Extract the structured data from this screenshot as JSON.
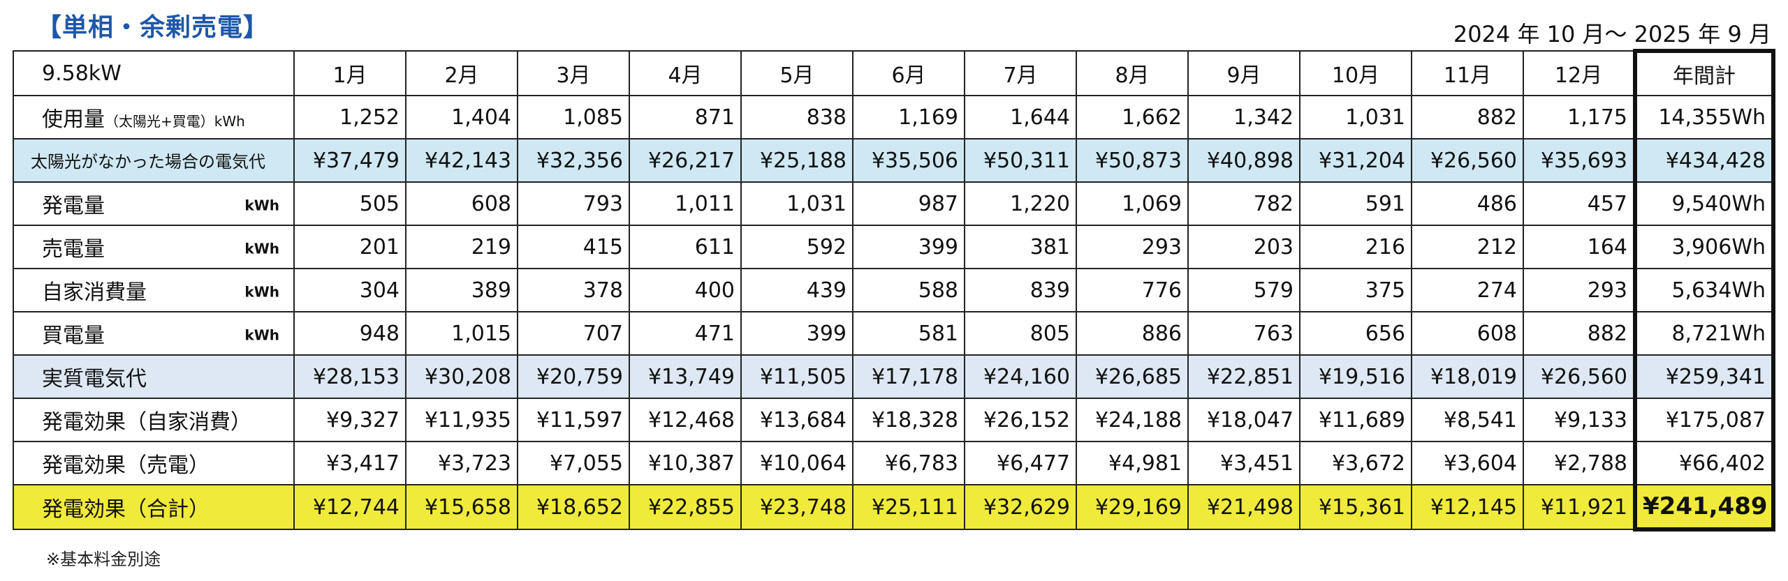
{
  "title": "【単相・余剰売電】",
  "period": "2024 年 10 月～ 2025 年 9 月",
  "header": {
    "capacity": "9.58kW",
    "months": [
      "1月",
      "2月",
      "3月",
      "4月",
      "5月",
      "6月",
      "7月",
      "8月",
      "9月",
      "10月",
      "11月",
      "12月"
    ],
    "total_label": "年間計"
  },
  "rows": [
    {
      "label": "使用量",
      "sub": "（太陽光+買電）kWh",
      "unit": "",
      "values": [
        "1,252",
        "1,404",
        "1,085",
        "871",
        "838",
        "1,169",
        "1,644",
        "1,662",
        "1,342",
        "1,031",
        "882",
        "1,175"
      ],
      "total": "14,355Wh"
    },
    {
      "label": "太陽光がなかった場合の電気代",
      "sub": "",
      "unit": "",
      "values": [
        "¥37,479",
        "¥42,143",
        "¥32,356",
        "¥26,217",
        "¥25,188",
        "¥35,506",
        "¥50,311",
        "¥50,873",
        "¥40,898",
        "¥31,204",
        "¥26,560",
        "¥35,693"
      ],
      "total": "¥434,428"
    },
    {
      "label": "発電量",
      "sub": "",
      "unit": "kWh",
      "values": [
        "505",
        "608",
        "793",
        "1,011",
        "1,031",
        "987",
        "1,220",
        "1,069",
        "782",
        "591",
        "486",
        "457"
      ],
      "total": "9,540Wh"
    },
    {
      "label": "売電量",
      "sub": "",
      "unit": "kWh",
      "values": [
        "201",
        "219",
        "415",
        "611",
        "592",
        "399",
        "381",
        "293",
        "203",
        "216",
        "212",
        "164"
      ],
      "total": "3,906Wh"
    },
    {
      "label": "自家消費量",
      "sub": "",
      "unit": "kWh",
      "values": [
        "304",
        "389",
        "378",
        "400",
        "439",
        "588",
        "839",
        "776",
        "579",
        "375",
        "274",
        "293"
      ],
      "total": "5,634Wh"
    },
    {
      "label": "買電量",
      "sub": "",
      "unit": "kWh",
      "values": [
        "948",
        "1,015",
        "707",
        "471",
        "399",
        "581",
        "805",
        "886",
        "763",
        "656",
        "608",
        "882"
      ],
      "total": "8,721Wh"
    },
    {
      "label": "実質電気代",
      "sub": "",
      "unit": "",
      "values": [
        "¥28,153",
        "¥30,208",
        "¥20,759",
        "¥13,749",
        "¥11,505",
        "¥17,178",
        "¥24,160",
        "¥26,685",
        "¥22,851",
        "¥19,516",
        "¥18,019",
        "¥26,560"
      ],
      "total": "¥259,341"
    },
    {
      "label": "発電効果（自家消費）",
      "sub": "",
      "unit": "",
      "values": [
        "¥9,327",
        "¥11,935",
        "¥11,597",
        "¥12,468",
        "¥13,684",
        "¥18,328",
        "¥26,152",
        "¥24,188",
        "¥18,047",
        "¥11,689",
        "¥8,541",
        "¥9,133"
      ],
      "total": "¥175,087"
    },
    {
      "label": "発電効果（売電）",
      "sub": "",
      "unit": "",
      "values": [
        "¥3,417",
        "¥3,723",
        "¥7,055",
        "¥10,387",
        "¥10,064",
        "¥6,783",
        "¥6,477",
        "¥4,981",
        "¥3,451",
        "¥3,672",
        "¥3,604",
        "¥2,788"
      ],
      "total": "¥66,402"
    },
    {
      "label": "発電効果（合計）",
      "sub": "",
      "unit": "",
      "values": [
        "¥12,744",
        "¥15,658",
        "¥18,652",
        "¥22,855",
        "¥23,748",
        "¥25,111",
        "¥32,629",
        "¥29,169",
        "¥21,498",
        "¥15,361",
        "¥12,145",
        "¥11,921"
      ],
      "total": "¥241,489"
    }
  ],
  "colors": {
    "title": "#1f57a8",
    "row_blue": "#cfe8f3",
    "row_lightblue": "#dde8f4",
    "row_yellow": "#f0ea3a"
  },
  "note": "※基本料金別途"
}
